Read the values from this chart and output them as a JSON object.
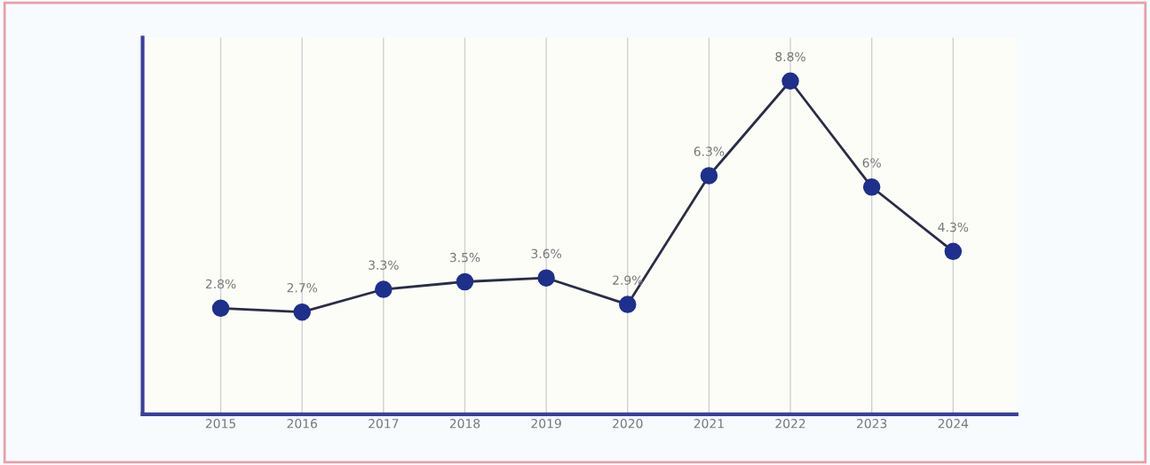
{
  "chart_data": {
    "type": "line",
    "categories": [
      "2015",
      "2016",
      "2017",
      "2018",
      "2019",
      "2020",
      "2021",
      "2022",
      "2023",
      "2024"
    ],
    "series": [
      {
        "color": "#1f2f8c",
        "values": [
          2.8,
          2.7,
          3.3,
          3.5,
          3.6,
          2.9,
          6.3,
          8.8,
          6,
          4.3
        ],
        "value_labels": [
          "2.8%",
          "2.7%",
          "3.3%",
          "3.5%",
          "3.6%",
          "2.9%",
          "6.3%",
          "8.8%",
          "6%",
          "4.3%"
        ]
      }
    ],
    "grid": "x",
    "marker": "circle",
    "line_style": "solid",
    "tick_labels": "x"
  }
}
